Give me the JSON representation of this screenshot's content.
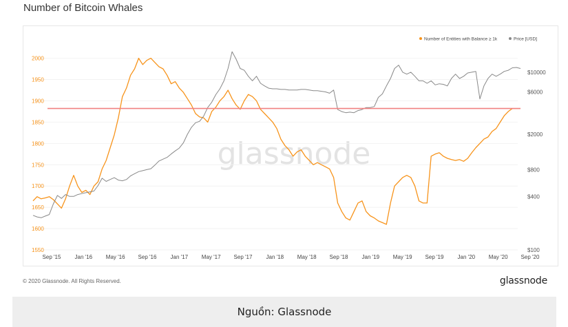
{
  "title": "Number of Bitcoin Whales",
  "footer": {
    "copyright": "© 2020 Glassnode. All Rights Reserved.",
    "brand": "glassnode"
  },
  "caption": "Nguồn: Glassnode",
  "watermark": "glassnode",
  "colors": {
    "entities": "#f7931a",
    "price": "#888888",
    "reference": "#f08080"
  },
  "chart_data": {
    "type": "line",
    "title": "Number of Bitcoin Whales",
    "legend": {
      "placement": "top-right",
      "entries": [
        "Number of Entities with Balance ≥ 1k",
        "Price [USD]"
      ]
    },
    "x_ticks": [
      "Sep '15",
      "Jan '16",
      "May '16",
      "Sep '16",
      "Jan '17",
      "May '17",
      "Sep '17",
      "Jan '18",
      "May '18",
      "Sep '18",
      "Jan '19",
      "May '19",
      "Sep '19",
      "Jan '20",
      "May '20",
      "Sep '20"
    ],
    "y_left": {
      "ticks": [
        1550,
        1600,
        1650,
        1700,
        1750,
        1800,
        1850,
        1900,
        1950,
        2000
      ],
      "range": [
        1550,
        2030
      ]
    },
    "y_right": {
      "scale": "log",
      "ticks": [
        100,
        400,
        800,
        2000,
        6000,
        10000
      ],
      "tick_labels": [
        "$100",
        "$400",
        "$800",
        "$2000",
        "$6000",
        "$10000"
      ],
      "range": [
        100,
        20000
      ]
    },
    "reference_line": {
      "axis": "left",
      "value": 1882
    },
    "grid": true,
    "series": [
      {
        "name": "Number of Entities with Balance ≥ 1k",
        "axis": "left",
        "x": [
          0,
          0.5,
          1,
          1.5,
          2,
          2.5,
          3,
          3.5,
          4,
          4.5,
          5,
          5.5,
          6,
          6.5,
          7,
          7.5,
          8,
          8.5,
          9,
          9.5,
          10,
          10.5,
          11,
          11.5,
          12,
          12.5,
          13,
          13.5,
          14,
          14.5,
          15,
          15.5,
          16,
          16.5,
          17,
          17.5,
          18,
          18.5,
          19,
          19.5,
          20,
          20.5,
          21,
          21.5,
          22,
          22.5,
          23,
          23.5,
          24,
          24.5,
          25,
          25.5,
          26,
          26.5,
          27,
          27.5,
          28,
          28.5,
          29,
          29.5,
          30,
          30.5,
          31,
          31.5,
          32,
          32.5,
          33,
          33.5,
          34,
          34.5,
          35,
          35.5,
          36,
          36.5,
          37,
          37.5,
          38,
          38.5,
          39,
          39.5,
          40,
          40.5,
          41,
          41.5,
          42,
          42.5,
          43,
          43.5,
          44,
          44.5,
          45,
          45.5,
          46,
          46.5,
          47,
          47.5,
          48,
          48.5,
          49,
          49.5,
          50,
          50.5,
          51,
          51.5,
          52,
          52.5,
          53,
          53.5,
          54,
          54.5,
          55,
          55.5,
          56,
          56.5,
          57,
          57.5,
          58,
          58.5,
          59,
          59.5,
          60
        ],
        "values": [
          1665,
          1675,
          1670,
          1672,
          1675,
          1668,
          1658,
          1648,
          1670,
          1700,
          1725,
          1700,
          1685,
          1690,
          1680,
          1700,
          1710,
          1740,
          1760,
          1790,
          1820,
          1860,
          1910,
          1930,
          1960,
          1975,
          2000,
          1985,
          1995,
          2000,
          1990,
          1980,
          1975,
          1960,
          1940,
          1945,
          1930,
          1920,
          1905,
          1890,
          1870,
          1862,
          1860,
          1850,
          1875,
          1885,
          1900,
          1910,
          1925,
          1905,
          1890,
          1880,
          1900,
          1915,
          1910,
          1900,
          1880,
          1870,
          1860,
          1850,
          1835,
          1810,
          1795,
          1785,
          1770,
          1780,
          1785,
          1770,
          1760,
          1750,
          1755,
          1750,
          1745,
          1740,
          1720,
          1660,
          1640,
          1625,
          1620,
          1640,
          1660,
          1665,
          1640,
          1630,
          1625,
          1618,
          1614,
          1610,
          1660,
          1700,
          1710,
          1720,
          1725,
          1720,
          1700,
          1665,
          1660,
          1660,
          1770,
          1775,
          1778,
          1770,
          1765,
          1762,
          1760,
          1762,
          1758,
          1765,
          1778,
          1790,
          1800,
          1810,
          1815,
          1828,
          1835,
          1850,
          1865,
          1875,
          1882,
          1882,
          1882
        ]
      },
      {
        "name": "Price [USD]",
        "axis": "right",
        "x": [
          0,
          0.5,
          1,
          1.5,
          2,
          2.5,
          3,
          3.5,
          4,
          4.5,
          5,
          5.5,
          6,
          6.5,
          7,
          7.5,
          8,
          8.5,
          9,
          9.5,
          10,
          10.5,
          11,
          11.5,
          12,
          12.5,
          13,
          13.5,
          14,
          14.5,
          15,
          15.5,
          16,
          16.5,
          17,
          17.5,
          18,
          18.5,
          19,
          19.5,
          20,
          20.5,
          21,
          21.5,
          22,
          22.5,
          23,
          23.5,
          24,
          24.5,
          25,
          25.5,
          26,
          26.5,
          27,
          27.5,
          28,
          28.5,
          29,
          29.5,
          30,
          30.5,
          31,
          31.5,
          32,
          32.5,
          33,
          33.5,
          34,
          34.5,
          35,
          35.5,
          36,
          36.5,
          37,
          37.5,
          38,
          38.5,
          39,
          39.5,
          40,
          40.5,
          41,
          41.5,
          42,
          42.5,
          43,
          43.5,
          44,
          44.5,
          45,
          45.5,
          46,
          46.5,
          47,
          47.5,
          48,
          48.5,
          49,
          49.5,
          50,
          50.5,
          51,
          51.5,
          52,
          52.5,
          53,
          53.5,
          54,
          54.5,
          55,
          55.5,
          56,
          56.5,
          57,
          57.5,
          58,
          58.5,
          59,
          59.5,
          60
        ],
        "values": [
          245,
          235,
          230,
          240,
          250,
          330,
          410,
          380,
          420,
          400,
          400,
          420,
          430,
          440,
          450,
          460,
          530,
          640,
          590,
          620,
          650,
          610,
          600,
          620,
          680,
          720,
          760,
          780,
          800,
          820,
          900,
          1000,
          1050,
          1100,
          1200,
          1300,
          1400,
          1600,
          2000,
          2400,
          2700,
          2800,
          3200,
          4000,
          4600,
          5600,
          6500,
          8000,
          11000,
          17000,
          14000,
          11000,
          10500,
          9000,
          8000,
          9000,
          7500,
          7000,
          6600,
          6500,
          6500,
          6400,
          6400,
          6300,
          6300,
          6300,
          6400,
          6400,
          6300,
          6200,
          6200,
          6100,
          6000,
          5800,
          6300,
          3800,
          3600,
          3500,
          3550,
          3500,
          3700,
          3800,
          4000,
          4000,
          4100,
          5200,
          5700,
          7000,
          8500,
          11000,
          12000,
          10000,
          9500,
          10000,
          9000,
          8000,
          8000,
          7500,
          8000,
          7200,
          7400,
          7300,
          7000,
          8500,
          9500,
          8500,
          9000,
          9800,
          10000,
          10200,
          5000,
          7000,
          8500,
          9500,
          9000,
          9500,
          10200,
          10500,
          11200,
          11300,
          11000
        ]
      }
    ]
  }
}
